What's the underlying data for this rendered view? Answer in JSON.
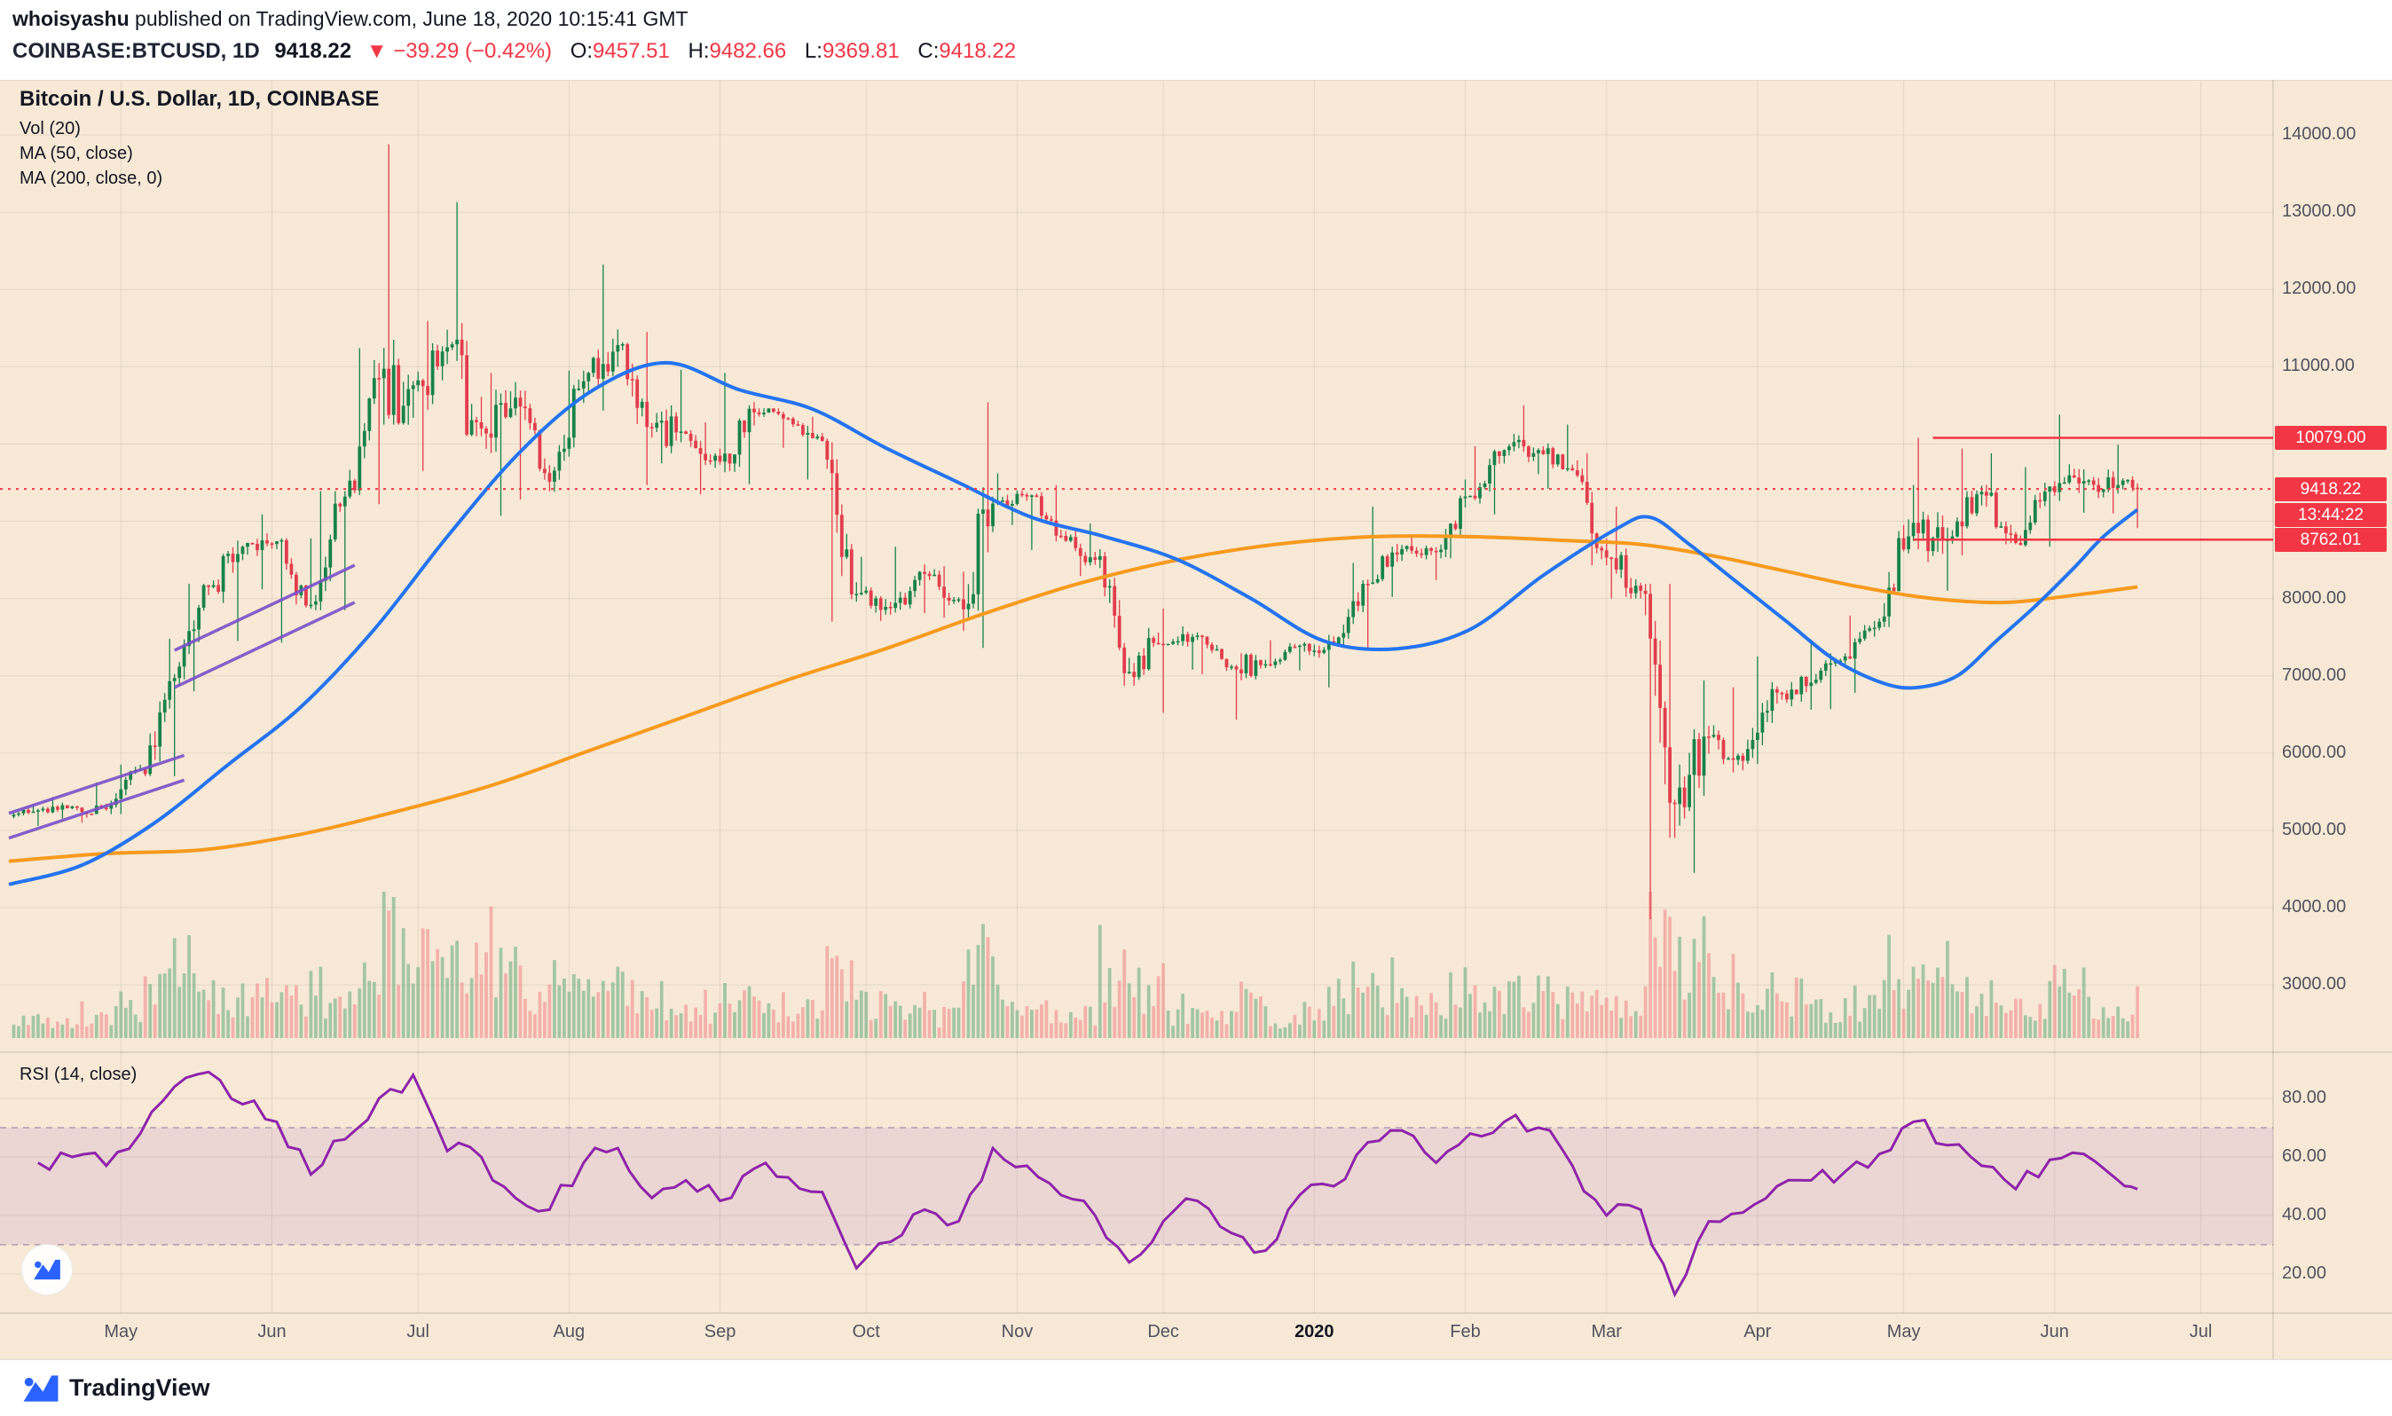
{
  "header": {
    "byline_user": "whoisyashu",
    "byline_rest": " published on TradingView.com, June 18, 2020 10:15:41 GMT",
    "symbol_title": "COINBASE:BTCUSD, 1D",
    "last_price": "9418.22",
    "change_arrow": "▼",
    "change_text": "−39.29 (−0.42%)",
    "ohlc": [
      {
        "label": "O:",
        "value": "9457.51"
      },
      {
        "label": "H:",
        "value": "9482.66"
      },
      {
        "label": "L:",
        "value": "9369.81"
      },
      {
        "label": "C:",
        "value": "9418.22"
      }
    ]
  },
  "legend": {
    "title": "Bitcoin / U.S. Dollar, 1D, COINBASE",
    "vol": "Vol (20)",
    "ma50": "MA (50, close)",
    "ma200": "MA (200, close, 0)",
    "rsi": "RSI (14, close)"
  },
  "price_axis": {
    "labels": [
      "14000.00",
      "13000.00",
      "12000.00",
      "11000.00",
      "10000.00",
      "9000.00",
      "8000.00",
      "7000.00",
      "6000.00",
      "5000.00",
      "4000.00",
      "3000.00"
    ],
    "badges": {
      "resistance": "10079.00",
      "last": "9418.22",
      "countdown": "13:44:22",
      "support": "8762.01"
    }
  },
  "rsi_axis": {
    "labels": [
      "80.00",
      "60.00",
      "40.00",
      "20.00"
    ]
  },
  "time_axis": {
    "labels": [
      "May",
      "Jun",
      "Jul",
      "Aug",
      "Sep",
      "Oct",
      "Nov",
      "Dec",
      "2020",
      "Feb",
      "Mar",
      "Apr",
      "May",
      "Jun",
      "Jul"
    ]
  },
  "footer": {
    "brand": "TradingView"
  },
  "colors": {
    "background": "#f7e9d6",
    "grid": "rgba(70,60,40,0.10)",
    "up_candle": "#17824a",
    "down_candle": "#e23d4d",
    "vol_up": "rgba(96,169,122,0.55)",
    "vol_down": "rgba(240,122,125,0.50)",
    "ma50": "#2474f0",
    "ma200": "#f79a1f",
    "rsi_line": "#8e24aa",
    "rsi_band": "rgba(146,84,191,0.12)",
    "rsi_band_edge": "rgba(110,90,140,0.50)",
    "accent_red": "#f23645",
    "trendline": "#7a51c9",
    "axis_text": "#50535e"
  },
  "chart_data": {
    "type": "candlestick",
    "title": "Bitcoin / U.S. Dollar, 1D, COINBASE",
    "x_start_date": "2019-04-08",
    "x_unit": "days since 2019-04-08, daily candles sampled as weekly OHLC anchors",
    "price_ylim": [
      2100,
      14700
    ],
    "price_ticks": [
      14000,
      13000,
      12000,
      11000,
      10000,
      9000,
      8000,
      7000,
      6000,
      5000,
      4000,
      3000
    ],
    "time_ticks_t": [
      23,
      54,
      84,
      115,
      146,
      176,
      207,
      237,
      268,
      299,
      328,
      359,
      389,
      420,
      450
    ],
    "last_price": 9418.22,
    "countdown": "13:44:22",
    "price_lines": [
      {
        "price": 10079.0,
        "from_t": 395
      },
      {
        "price": 8762.01,
        "from_t": 391
      }
    ],
    "weekly_ohlc_vol_rsi_note": "[t, open, high, low, close, relative_volume_0_100, rsi14]",
    "weekly": [
      [
        6,
        5180,
        5340,
        5060,
        5260,
        14,
        58
      ],
      [
        13,
        5260,
        5430,
        5150,
        5310,
        14,
        60
      ],
      [
        20,
        5310,
        5620,
        5100,
        5280,
        18,
        57
      ],
      [
        27,
        5280,
        5850,
        5210,
        5790,
        24,
        68
      ],
      [
        34,
        5790,
        7480,
        5700,
        6970,
        48,
        84
      ],
      [
        41,
        6970,
        8190,
        6800,
        8150,
        55,
        89
      ],
      [
        48,
        8150,
        8750,
        7450,
        8670,
        36,
        78
      ],
      [
        55,
        8670,
        9090,
        8120,
        8740,
        38,
        72
      ],
      [
        62,
        8740,
        8780,
        7430,
        7920,
        34,
        54
      ],
      [
        69,
        7920,
        9390,
        7850,
        9320,
        33,
        66
      ],
      [
        76,
        9320,
        11240,
        9220,
        10850,
        48,
        80
      ],
      [
        83,
        10850,
        13880,
        10250,
        10760,
        92,
        88
      ],
      [
        90,
        10760,
        11590,
        9650,
        11250,
        60,
        62
      ],
      [
        97,
        11250,
        13130,
        10100,
        10200,
        62,
        60
      ],
      [
        104,
        10200,
        10920,
        9070,
        10600,
        70,
        46
      ],
      [
        111,
        10600,
        10690,
        9280,
        9510,
        42,
        42
      ],
      [
        118,
        9510,
        10950,
        9380,
        10810,
        40,
        58
      ],
      [
        125,
        10810,
        12320,
        10430,
        11280,
        46,
        63
      ],
      [
        132,
        11280,
        11450,
        9470,
        10210,
        42,
        46
      ],
      [
        139,
        10210,
        10960,
        9750,
        10130,
        30,
        52
      ],
      [
        146,
        10130,
        10280,
        9350,
        9770,
        26,
        45
      ],
      [
        153,
        9770,
        10920,
        9480,
        10410,
        32,
        56
      ],
      [
        160,
        10410,
        10460,
        9950,
        10330,
        22,
        53
      ],
      [
        167,
        10330,
        10350,
        9540,
        10040,
        20,
        48
      ],
      [
        174,
        10040,
        10070,
        7700,
        8060,
        58,
        22
      ],
      [
        181,
        8060,
        8540,
        7710,
        7880,
        30,
        31
      ],
      [
        188,
        7880,
        8670,
        7810,
        8320,
        24,
        42
      ],
      [
        195,
        8320,
        8420,
        7750,
        7990,
        20,
        38
      ],
      [
        202,
        7990,
        10540,
        7360,
        9230,
        85,
        63
      ],
      [
        209,
        9230,
        9620,
        8950,
        9320,
        36,
        57
      ],
      [
        216,
        9320,
        9470,
        8630,
        8810,
        26,
        47
      ],
      [
        223,
        8810,
        8970,
        8290,
        8500,
        22,
        40
      ],
      [
        230,
        8500,
        8640,
        6870,
        7050,
        55,
        24
      ],
      [
        237,
        7050,
        7870,
        6520,
        7400,
        45,
        38
      ],
      [
        244,
        7400,
        7640,
        7080,
        7520,
        22,
        45
      ],
      [
        251,
        7520,
        7530,
        7020,
        7120,
        18,
        34
      ],
      [
        258,
        7120,
        7290,
        6430,
        7150,
        32,
        28
      ],
      [
        265,
        7150,
        7460,
        7070,
        7390,
        15,
        47
      ],
      [
        272,
        7390,
        7530,
        6850,
        7410,
        24,
        50
      ],
      [
        279,
        7410,
        8460,
        7350,
        8190,
        38,
        65
      ],
      [
        286,
        8190,
        9190,
        8020,
        8640,
        42,
        69
      ],
      [
        293,
        8640,
        8790,
        8240,
        8600,
        28,
        58
      ],
      [
        300,
        8600,
        9540,
        8520,
        9330,
        36,
        68
      ],
      [
        307,
        9330,
        9970,
        9090,
        9920,
        32,
        72
      ],
      [
        314,
        9920,
        10500,
        9610,
        9920,
        42,
        70
      ],
      [
        321,
        9920,
        10250,
        9420,
        9660,
        30,
        57
      ],
      [
        328,
        9660,
        9880,
        8430,
        8530,
        38,
        40
      ],
      [
        335,
        8530,
        9190,
        8000,
        8100,
        34,
        42
      ],
      [
        342,
        8100,
        8190,
        3850,
        5340,
        100,
        13
      ],
      [
        349,
        5340,
        6940,
        4450,
        6210,
        68,
        38
      ],
      [
        356,
        6210,
        6850,
        5750,
        5900,
        40,
        41
      ],
      [
        363,
        5900,
        7250,
        5860,
        6780,
        42,
        50
      ],
      [
        370,
        6780,
        7470,
        6560,
        6910,
        38,
        52
      ],
      [
        377,
        6910,
        7290,
        6570,
        7250,
        26,
        55
      ],
      [
        384,
        7250,
        7780,
        6780,
        7700,
        30,
        61
      ],
      [
        391,
        7700,
        9470,
        7630,
        8980,
        55,
        72
      ],
      [
        398,
        8980,
        10079,
        8100,
        8760,
        52,
        64
      ],
      [
        405,
        8760,
        9940,
        8560,
        9380,
        42,
        57
      ],
      [
        412,
        9380,
        9880,
        8700,
        8720,
        30,
        49
      ],
      [
        419,
        8720,
        9700,
        8670,
        9450,
        28,
        59
      ],
      [
        426,
        9450,
        10380,
        9110,
        9520,
        48,
        61
      ],
      [
        433,
        9520,
        9990,
        9100,
        9470,
        32,
        52
      ],
      [
        437,
        9470,
        9580,
        8910,
        9418.22,
        26,
        49
      ]
    ],
    "ma50": [
      [
        0,
        4300
      ],
      [
        15,
        4550
      ],
      [
        30,
        5100
      ],
      [
        45,
        5850
      ],
      [
        60,
        6600
      ],
      [
        75,
        7600
      ],
      [
        90,
        8800
      ],
      [
        105,
        9900
      ],
      [
        120,
        10700
      ],
      [
        135,
        11050
      ],
      [
        150,
        10700
      ],
      [
        165,
        10450
      ],
      [
        180,
        9950
      ],
      [
        195,
        9500
      ],
      [
        210,
        9050
      ],
      [
        225,
        8800
      ],
      [
        240,
        8500
      ],
      [
        255,
        8000
      ],
      [
        270,
        7450
      ],
      [
        285,
        7350
      ],
      [
        300,
        7600
      ],
      [
        315,
        8300
      ],
      [
        330,
        8900
      ],
      [
        337,
        9050
      ],
      [
        345,
        8700
      ],
      [
        355,
        8200
      ],
      [
        365,
        7700
      ],
      [
        375,
        7200
      ],
      [
        385,
        6900
      ],
      [
        392,
        6850
      ],
      [
        400,
        7000
      ],
      [
        408,
        7450
      ],
      [
        416,
        7900
      ],
      [
        424,
        8400
      ],
      [
        430,
        8800
      ],
      [
        437,
        9150
      ]
    ],
    "ma200": [
      [
        0,
        4600
      ],
      [
        20,
        4700
      ],
      [
        40,
        4750
      ],
      [
        60,
        4950
      ],
      [
        80,
        5250
      ],
      [
        100,
        5600
      ],
      [
        120,
        6050
      ],
      [
        140,
        6500
      ],
      [
        160,
        6950
      ],
      [
        180,
        7350
      ],
      [
        200,
        7800
      ],
      [
        220,
        8200
      ],
      [
        240,
        8500
      ],
      [
        260,
        8700
      ],
      [
        280,
        8800
      ],
      [
        300,
        8800
      ],
      [
        320,
        8750
      ],
      [
        335,
        8700
      ],
      [
        350,
        8550
      ],
      [
        365,
        8350
      ],
      [
        380,
        8150
      ],
      [
        395,
        8000
      ],
      [
        410,
        7950
      ],
      [
        425,
        8050
      ],
      [
        437,
        8150
      ]
    ],
    "trendlines": [
      {
        "t1": 0,
        "p1": 4900,
        "t2": 36,
        "p2": 5650
      },
      {
        "t1": 0,
        "p1": 5220,
        "t2": 36,
        "p2": 5970
      },
      {
        "t1": 34,
        "p1": 6850,
        "t2": 71,
        "p2": 7950
      },
      {
        "t1": 34,
        "p1": 7330,
        "t2": 71,
        "p2": 8430
      }
    ],
    "rsi": {
      "period": 14,
      "band": [
        30,
        70
      ],
      "ticks": [
        80,
        60,
        40,
        20
      ],
      "ylim_shown": [
        10,
        95
      ]
    }
  }
}
